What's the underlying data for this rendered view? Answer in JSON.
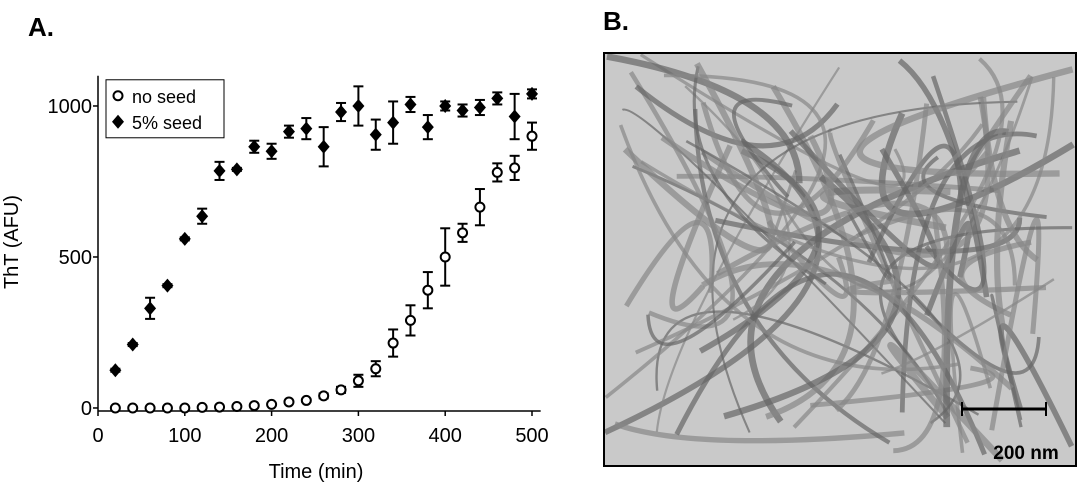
{
  "chart_data": {
    "type": "scatter",
    "panel_label": "A.",
    "x_label": "Time (min)",
    "y_label": "ThT (AFU)",
    "x": [
      20,
      40,
      60,
      80,
      100,
      120,
      140,
      160,
      180,
      200,
      220,
      240,
      260,
      280,
      300,
      320,
      340,
      360,
      380,
      400,
      420,
      440,
      460,
      480,
      500
    ],
    "series": [
      {
        "name": "no seed",
        "color": "#000000",
        "marker": "open-circle",
        "values": [
          0,
          0,
          0,
          0,
          0,
          2,
          3,
          5,
          8,
          12,
          20,
          25,
          40,
          60,
          90,
          130,
          215,
          290,
          390,
          500,
          580,
          665,
          780,
          795,
          900
        ],
        "errors": [
          3,
          3,
          3,
          3,
          3,
          3,
          3,
          3,
          3,
          3,
          3,
          5,
          8,
          10,
          20,
          25,
          45,
          50,
          60,
          95,
          30,
          60,
          30,
          40,
          45
        ]
      },
      {
        "name": "5% seed",
        "color": "#000000",
        "marker": "diamond",
        "values": [
          125,
          210,
          330,
          405,
          560,
          635,
          785,
          790,
          865,
          850,
          915,
          925,
          865,
          980,
          1000,
          905,
          945,
          1005,
          930,
          1000,
          985,
          995,
          1025,
          965,
          1040
        ],
        "errors": [
          5,
          5,
          35,
          5,
          5,
          25,
          30,
          5,
          20,
          25,
          20,
          35,
          65,
          30,
          65,
          50,
          70,
          25,
          40,
          15,
          20,
          25,
          20,
          75,
          15
        ]
      }
    ],
    "xlim": [
      0,
      510
    ],
    "ylim": [
      -10,
      1100
    ],
    "xticks": [
      0,
      100,
      200,
      300,
      400,
      500
    ],
    "yticks": [
      0,
      500,
      1000
    ],
    "legend": "upper-left"
  },
  "panel_b": {
    "label": "B.",
    "scale_bar": "200 nm"
  }
}
